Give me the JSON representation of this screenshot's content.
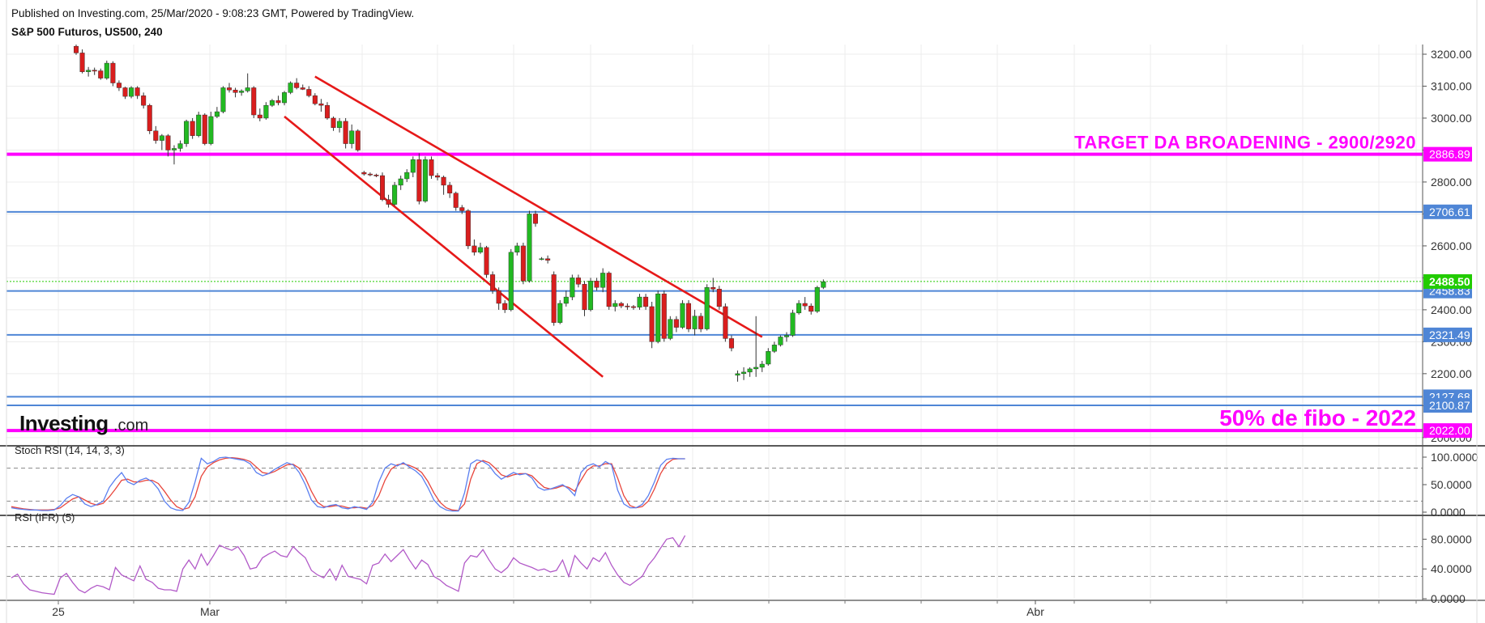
{
  "header": {
    "published": "Published on Investing.com, 25/Mar/2020 - 9:08:23 GMT, Powered by TradingView.",
    "instrument": "S&P 500 Futuros, US500, 240"
  },
  "brand": {
    "name": "Investing",
    "suffix": ".com"
  },
  "colors": {
    "up": "#22b922",
    "down": "#d91e1e",
    "magenta": "#ff00ff",
    "blue_level": "#4f86d6",
    "trend": "#e61919",
    "current": "#22cc00",
    "stoch_k": "#5a7ff0",
    "stoch_d": "#e8463c",
    "rsi": "#b25ac8"
  },
  "chart_data": {
    "type": "candlestick",
    "title": "S&P 500 Futuros, US500, 240",
    "timeframe": "240",
    "x_tick_labels": [
      "25",
      "Mar",
      "Abr"
    ],
    "price_axis": {
      "ylim": [
        2000,
        3220
      ],
      "ticks": [
        3200,
        3100,
        3000,
        2900,
        2800,
        2700,
        2600,
        2500,
        2400,
        2300,
        2200,
        2100,
        2000
      ],
      "tick_labels": [
        "3200.00",
        "3100.00",
        "3000.00",
        "",
        "2800.00",
        "",
        "2600.00",
        "",
        "2400.00",
        "2300.00",
        "2200.00",
        "",
        "2000.00"
      ]
    },
    "current_price": {
      "value": 2488.5,
      "label": "2488.50"
    },
    "levels": [
      {
        "value": 2886.89,
        "label": "2886.89",
        "color": "#ff00ff",
        "kind": "magenta"
      },
      {
        "value": 2706.61,
        "label": "2706.61",
        "color": "#4f86d6",
        "kind": "blue"
      },
      {
        "value": 2458.83,
        "label": "2458.83",
        "color": "#4f86d6",
        "kind": "blue"
      },
      {
        "value": 2321.49,
        "label": "2321.49",
        "color": "#4f86d6",
        "kind": "blue"
      },
      {
        "value": 2127.68,
        "label": "2127.68",
        "color": "#4f86d6",
        "kind": "blue"
      },
      {
        "value": 2100.87,
        "label": "2100.87",
        "color": "#4f86d6",
        "kind": "blue"
      },
      {
        "value": 2022.0,
        "label": "2022.00",
        "color": "#ff00ff",
        "kind": "magenta"
      }
    ],
    "annotations": [
      {
        "text": "TARGET DA BROADENING - 2900/2920",
        "price": 2886.89
      },
      {
        "text": "50% de fibo - 2022",
        "price": 2022.0
      }
    ],
    "trendlines": [
      {
        "name": "upper",
        "from": {
          "bar": 39,
          "price": 3130
        },
        "to": {
          "bar": 112,
          "price": 2315
        }
      },
      {
        "name": "lower",
        "from": {
          "bar": 34,
          "price": 3005
        },
        "to": {
          "bar": 86,
          "price": 2190
        }
      }
    ],
    "candles_ohlc": [
      [
        3225,
        3230,
        3198,
        3204
      ],
      [
        3204,
        3215,
        3140,
        3145
      ],
      [
        3145,
        3160,
        3130,
        3150
      ],
      [
        3150,
        3158,
        3135,
        3148
      ],
      [
        3148,
        3155,
        3120,
        3125
      ],
      [
        3125,
        3180,
        3120,
        3172
      ],
      [
        3172,
        3178,
        3100,
        3110
      ],
      [
        3110,
        3118,
        3085,
        3095
      ],
      [
        3095,
        3098,
        3060,
        3068
      ],
      [
        3068,
        3100,
        3062,
        3095
      ],
      [
        3095,
        3100,
        3060,
        3070
      ],
      [
        3070,
        3080,
        3030,
        3040
      ],
      [
        3040,
        3045,
        2950,
        2960
      ],
      [
        2960,
        2975,
        2920,
        2930
      ],
      [
        2930,
        2950,
        2900,
        2945
      ],
      [
        2945,
        2950,
        2880,
        2900
      ],
      [
        2900,
        2915,
        2855,
        2905
      ],
      [
        2905,
        2930,
        2895,
        2920
      ],
      [
        2920,
        2995,
        2910,
        2990
      ],
      [
        2990,
        3000,
        2935,
        2945
      ],
      [
        2945,
        3020,
        2940,
        3010
      ],
      [
        3010,
        3015,
        2915,
        2920
      ],
      [
        2920,
        3020,
        2915,
        3005
      ],
      [
        3005,
        3035,
        3000,
        3020
      ],
      [
        3020,
        3100,
        3015,
        3095
      ],
      [
        3095,
        3110,
        3080,
        3088
      ],
      [
        3088,
        3095,
        3065,
        3080
      ],
      [
        3080,
        3090,
        3070,
        3085
      ],
      [
        3085,
        3140,
        3080,
        3095
      ],
      [
        3095,
        3100,
        3000,
        3010
      ],
      [
        3010,
        3030,
        2990,
        3000
      ],
      [
        3000,
        3050,
        2995,
        3040
      ],
      [
        3040,
        3060,
        3035,
        3055
      ],
      [
        3055,
        3070,
        3040,
        3048
      ],
      [
        3048,
        3085,
        3040,
        3080
      ],
      [
        3080,
        3115,
        3075,
        3110
      ],
      [
        3110,
        3125,
        3090,
        3095
      ],
      [
        3095,
        3105,
        3088,
        3090
      ],
      [
        3090,
        3100,
        3065,
        3070
      ],
      [
        3070,
        3078,
        3040,
        3045
      ],
      [
        3045,
        3060,
        3020,
        3040
      ],
      [
        3040,
        3050,
        2995,
        3000
      ],
      [
        3000,
        3005,
        2960,
        2970
      ],
      [
        2970,
        3000,
        2955,
        2990
      ],
      [
        2990,
        3000,
        2905,
        2920
      ],
      [
        2920,
        2980,
        2905,
        2960
      ],
      [
        2960,
        2965,
        2895,
        2900
      ],
      [
        2830,
        2835,
        2820,
        2825
      ],
      [
        2825,
        2830,
        2818,
        2822
      ],
      [
        2822,
        2826,
        2815,
        2820
      ],
      [
        2820,
        2830,
        2740,
        2745
      ],
      [
        2745,
        2760,
        2720,
        2730
      ],
      [
        2730,
        2800,
        2725,
        2790
      ],
      [
        2790,
        2820,
        2775,
        2810
      ],
      [
        2810,
        2840,
        2800,
        2830
      ],
      [
        2830,
        2880,
        2815,
        2870
      ],
      [
        2870,
        2890,
        2730,
        2740
      ],
      [
        2740,
        2880,
        2735,
        2870
      ],
      [
        2870,
        2880,
        2810,
        2820
      ],
      [
        2820,
        2828,
        2805,
        2815
      ],
      [
        2815,
        2820,
        2760,
        2790
      ],
      [
        2790,
        2800,
        2750,
        2765
      ],
      [
        2765,
        2770,
        2710,
        2720
      ],
      [
        2720,
        2728,
        2700,
        2710
      ],
      [
        2710,
        2715,
        2590,
        2600
      ],
      [
        2600,
        2620,
        2570,
        2580
      ],
      [
        2580,
        2610,
        2575,
        2595
      ],
      [
        2595,
        2600,
        2500,
        2510
      ],
      [
        2510,
        2520,
        2450,
        2460
      ],
      [
        2460,
        2470,
        2400,
        2420
      ],
      [
        2420,
        2430,
        2390,
        2400
      ],
      [
        2400,
        2590,
        2395,
        2580
      ],
      [
        2580,
        2610,
        2570,
        2600
      ],
      [
        2600,
        2610,
        2480,
        2490
      ],
      [
        2490,
        2710,
        2485,
        2700
      ],
      [
        2700,
        2710,
        2660,
        2670
      ],
      [
        2560,
        2565,
        2555,
        2560
      ],
      [
        2560,
        2570,
        2545,
        2555
      ],
      [
        2510,
        2520,
        2350,
        2360
      ],
      [
        2360,
        2430,
        2355,
        2420
      ],
      [
        2420,
        2460,
        2410,
        2440
      ],
      [
        2440,
        2510,
        2430,
        2500
      ],
      [
        2500,
        2510,
        2470,
        2480
      ],
      [
        2480,
        2490,
        2380,
        2400
      ],
      [
        2400,
        2500,
        2395,
        2490
      ],
      [
        2490,
        2500,
        2460,
        2470
      ],
      [
        2470,
        2530,
        2455,
        2515
      ],
      [
        2515,
        2520,
        2400,
        2410
      ],
      [
        2410,
        2430,
        2395,
        2420
      ],
      [
        2420,
        2425,
        2405,
        2412
      ],
      [
        2412,
        2420,
        2400,
        2410
      ],
      [
        2410,
        2415,
        2400,
        2408
      ],
      [
        2408,
        2450,
        2400,
        2440
      ],
      [
        2440,
        2450,
        2400,
        2410
      ],
      [
        2410,
        2425,
        2280,
        2300
      ],
      [
        2300,
        2460,
        2295,
        2450
      ],
      [
        2450,
        2460,
        2300,
        2310
      ],
      [
        2310,
        2380,
        2305,
        2370
      ],
      [
        2370,
        2380,
        2330,
        2345
      ],
      [
        2345,
        2430,
        2340,
        2420
      ],
      [
        2420,
        2430,
        2330,
        2340
      ],
      [
        2340,
        2400,
        2320,
        2380
      ],
      [
        2380,
        2390,
        2330,
        2340
      ],
      [
        2340,
        2480,
        2335,
        2470
      ],
      [
        2470,
        2500,
        2455,
        2465
      ],
      [
        2465,
        2475,
        2400,
        2410
      ],
      [
        2410,
        2420,
        2300,
        2310
      ],
      [
        2310,
        2320,
        2270,
        2280
      ],
      [
        2195,
        2210,
        2175,
        2200
      ],
      [
        2200,
        2220,
        2180,
        2205
      ],
      [
        2205,
        2220,
        2190,
        2215
      ],
      [
        2215,
        2380,
        2190,
        2220
      ],
      [
        2220,
        2240,
        2205,
        2230
      ],
      [
        2230,
        2280,
        2225,
        2270
      ],
      [
        2270,
        2300,
        2265,
        2290
      ],
      [
        2290,
        2320,
        2285,
        2315
      ],
      [
        2315,
        2330,
        2300,
        2320
      ],
      [
        2320,
        2400,
        2315,
        2390
      ],
      [
        2390,
        2430,
        2385,
        2420
      ],
      [
        2420,
        2440,
        2400,
        2412
      ],
      [
        2412,
        2420,
        2385,
        2395
      ],
      [
        2395,
        2475,
        2390,
        2470
      ],
      [
        2470,
        2495,
        2465,
        2488
      ]
    ],
    "stoch_rsi": {
      "label": "Stoch RSI (14, 14, 3, 3)",
      "ylim": [
        0,
        100
      ],
      "tick_labels": [
        "100.0000",
        "50.0000",
        "0.0000"
      ],
      "levels": [
        80,
        20
      ],
      "k": [
        8,
        6,
        5,
        4,
        4,
        3,
        3,
        4,
        12,
        25,
        32,
        28,
        15,
        10,
        14,
        20,
        45,
        60,
        72,
        55,
        50,
        58,
        62,
        55,
        42,
        20,
        8,
        4,
        3,
        18,
        55,
        98,
        88,
        92,
        99,
        100,
        98,
        96,
        94,
        88,
        72,
        66,
        70,
        78,
        84,
        90,
        86,
        72,
        50,
        22,
        10,
        8,
        12,
        14,
        8,
        6,
        10,
        8,
        5,
        18,
        55,
        80,
        88,
        84,
        90,
        82,
        75,
        65,
        45,
        22,
        10,
        4,
        2,
        2,
        35,
        88,
        95,
        92,
        85,
        70,
        60,
        66,
        72,
        68,
        70,
        62,
        45,
        40,
        42,
        46,
        50,
        42,
        30,
        72,
        84,
        88,
        82,
        92,
        86,
        40,
        15,
        8,
        8,
        14,
        30,
        55,
        85,
        96,
        98,
        97,
        97
      ],
      "d": [
        10,
        8,
        6,
        5,
        4,
        4,
        4,
        5,
        8,
        16,
        24,
        28,
        22,
        16,
        13,
        16,
        28,
        42,
        58,
        60,
        55,
        55,
        58,
        58,
        52,
        38,
        22,
        10,
        5,
        8,
        28,
        65,
        82,
        90,
        95,
        98,
        99,
        98,
        96,
        92,
        82,
        72,
        70,
        74,
        80,
        86,
        87,
        80,
        62,
        38,
        18,
        10,
        10,
        12,
        11,
        8,
        8,
        9,
        7,
        12,
        30,
        58,
        78,
        86,
        88,
        85,
        80,
        72,
        56,
        35,
        18,
        8,
        4,
        3,
        15,
        60,
        88,
        94,
        90,
        80,
        68,
        64,
        68,
        70,
        70,
        66,
        55,
        45,
        42,
        44,
        48,
        45,
        38,
        58,
        76,
        84,
        84,
        88,
        88,
        62,
        30,
        12,
        8,
        10,
        20,
        42,
        70,
        88,
        96,
        97,
        97
      ]
    },
    "rsi": {
      "label": "RSI (IFR) (5)",
      "ylim": [
        0,
        100
      ],
      "tick_labels": [
        "80.0000",
        "40.0000",
        "0.0000"
      ],
      "levels": [
        70,
        30
      ],
      "values": [
        28,
        33,
        20,
        12,
        10,
        8,
        7,
        6,
        28,
        34,
        22,
        12,
        8,
        14,
        18,
        16,
        12,
        42,
        32,
        28,
        24,
        44,
        26,
        22,
        14,
        12,
        12,
        10,
        40,
        52,
        40,
        60,
        45,
        58,
        72,
        68,
        65,
        70,
        58,
        40,
        42,
        55,
        60,
        64,
        58,
        56,
        70,
        62,
        55,
        38,
        32,
        28,
        40,
        25,
        45,
        30,
        28,
        26,
        20,
        45,
        48,
        60,
        50,
        58,
        66,
        52,
        40,
        52,
        46,
        30,
        25,
        18,
        14,
        10,
        48,
        58,
        56,
        66,
        52,
        40,
        35,
        42,
        55,
        48,
        45,
        42,
        38,
        40,
        36,
        38,
        52,
        30,
        58,
        48,
        40,
        55,
        50,
        62,
        45,
        32,
        22,
        18,
        24,
        30,
        45,
        55,
        68,
        80,
        82,
        70,
        85
      ]
    }
  }
}
